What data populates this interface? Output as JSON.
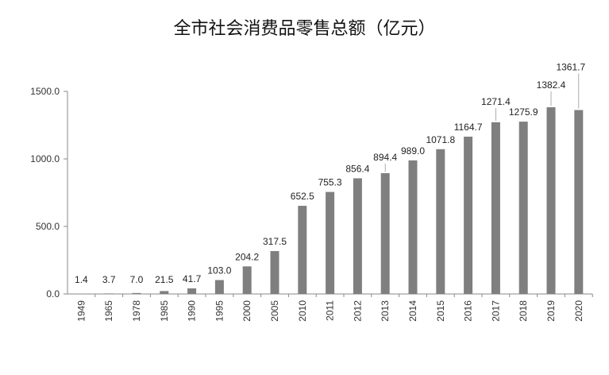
{
  "chart_data": {
    "type": "bar",
    "title": "全市社会消费品零售总额（亿元）",
    "xlabel": "",
    "ylabel": "",
    "categories": [
      "1949",
      "1965",
      "1978",
      "1985",
      "1990",
      "1995",
      "2000",
      "2005",
      "2010",
      "2011",
      "2012",
      "2013",
      "2014",
      "2015",
      "2016",
      "2017",
      "2018",
      "2019",
      "2020"
    ],
    "values": [
      1.4,
      3.7,
      7.0,
      21.5,
      41.7,
      103.0,
      204.2,
      317.5,
      652.5,
      755.3,
      856.4,
      894.4,
      989.0,
      1071.8,
      1164.7,
      1271.4,
      1275.9,
      1382.4,
      1361.7
    ],
    "value_labels": [
      "1.4",
      "3.7",
      "7.0",
      "21.5",
      "41.7",
      "103.0",
      "204.2",
      "317.5",
      "652.5",
      "755.3",
      "856.4",
      "894.4",
      "989.0",
      "1071.8",
      "1164.7",
      "1271.4",
      "1275.9",
      "1382.4",
      "1361.7"
    ],
    "yticks": [
      "0.0",
      "500.0",
      "1000.0",
      "1500.0"
    ],
    "ylim": [
      0,
      1500
    ],
    "grid": false,
    "legend": "none",
    "bar_color": "#7f7f7f",
    "axis_color": "#888888"
  }
}
